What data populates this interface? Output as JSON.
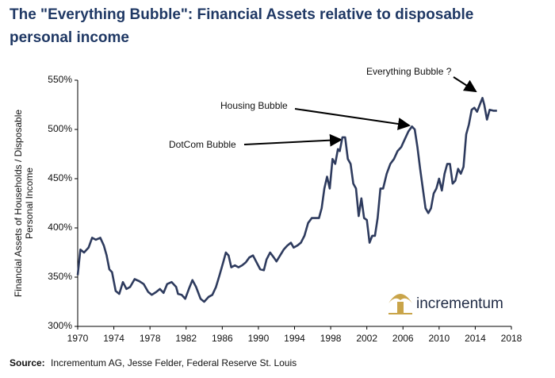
{
  "chart_data": {
    "type": "line",
    "title": "The \"Everything Bubble\": Financial Assets relative to disposable personal income",
    "ylabel": "Financial Assets of Households / Disposable Personal Income",
    "source_label": "Source:",
    "source_text": "Incrementum AG, Jesse Felder, Federal Reserve St. Louis",
    "logo_text": "incrementum",
    "annotations": [
      "Everything Bubble ?",
      "Housing Bubble",
      "DotCom Bubble"
    ],
    "color": "#2e3b5e",
    "xlim": [
      1970,
      2018
    ],
    "xticks": [
      1970,
      1974,
      1978,
      1982,
      1986,
      1990,
      1994,
      1998,
      2002,
      2006,
      2010,
      2014,
      2018
    ],
    "ylim": [
      300,
      550
    ],
    "yticks": [
      {
        "value": 300,
        "label": "300%"
      },
      {
        "value": 350,
        "label": "350%"
      },
      {
        "value": 400,
        "label": "400%"
      },
      {
        "value": 450,
        "label": "450%"
      },
      {
        "value": 500,
        "label": "500%"
      },
      {
        "value": 550,
        "label": "550%"
      }
    ],
    "x": [
      1970.0,
      1970.3,
      1970.7,
      1971.2,
      1971.6,
      1972.0,
      1972.5,
      1972.9,
      1973.2,
      1973.5,
      1973.8,
      1974.2,
      1974.6,
      1975.0,
      1975.4,
      1975.8,
      1976.3,
      1976.8,
      1977.3,
      1977.8,
      1978.2,
      1978.7,
      1979.1,
      1979.5,
      1979.9,
      1980.4,
      1980.9,
      1981.1,
      1981.5,
      1981.9,
      1982.3,
      1982.7,
      1983.1,
      1983.6,
      1984.0,
      1984.5,
      1984.9,
      1985.3,
      1985.7,
      1986.1,
      1986.4,
      1986.7,
      1987.0,
      1987.4,
      1987.8,
      1988.2,
      1988.6,
      1989.0,
      1989.4,
      1989.8,
      1990.2,
      1990.6,
      1990.9,
      1991.3,
      1991.7,
      1992.0,
      1992.4,
      1992.8,
      1993.2,
      1993.6,
      1993.9,
      1994.3,
      1994.7,
      1995.1,
      1995.5,
      1995.9,
      1996.3,
      1996.7,
      1997.0,
      1997.3,
      1997.6,
      1997.9,
      1998.2,
      1998.5,
      1998.8,
      1999.0,
      1999.3,
      1999.6,
      1999.9,
      2000.2,
      2000.5,
      2000.8,
      2001.1,
      2001.4,
      2001.7,
      2002.0,
      2002.3,
      2002.6,
      2002.9,
      2003.2,
      2003.5,
      2003.8,
      2004.2,
      2004.6,
      2005.0,
      2005.4,
      2005.8,
      2006.2,
      2006.6,
      2007.0,
      2007.3,
      2007.6,
      2007.9,
      2008.2,
      2008.5,
      2008.8,
      2009.1,
      2009.4,
      2009.7,
      2010.0,
      2010.3,
      2010.6,
      2010.9,
      2011.2,
      2011.5,
      2011.8,
      2012.1,
      2012.4,
      2012.7,
      2013.0,
      2013.3,
      2013.6,
      2013.9,
      2014.2,
      2014.5,
      2014.8,
      2015.0,
      2015.3,
      2015.6,
      2016.0,
      2016.4
    ],
    "values": [
      352,
      378,
      375,
      380,
      390,
      388,
      390,
      382,
      372,
      358,
      355,
      336,
      333,
      345,
      338,
      340,
      348,
      346,
      343,
      335,
      332,
      335,
      338,
      334,
      343,
      345,
      340,
      333,
      332,
      328,
      338,
      347,
      340,
      328,
      325,
      330,
      332,
      340,
      352,
      365,
      375,
      372,
      360,
      362,
      360,
      362,
      365,
      370,
      372,
      365,
      358,
      357,
      368,
      375,
      370,
      366,
      372,
      378,
      382,
      385,
      380,
      382,
      385,
      392,
      405,
      410,
      410,
      410,
      420,
      440,
      452,
      440,
      470,
      465,
      480,
      478,
      492,
      492,
      470,
      465,
      445,
      440,
      412,
      430,
      410,
      408,
      385,
      392,
      392,
      410,
      440,
      440,
      455,
      465,
      470,
      478,
      482,
      490,
      498,
      503,
      500,
      482,
      460,
      440,
      420,
      415,
      420,
      435,
      440,
      450,
      438,
      455,
      465,
      465,
      445,
      448,
      460,
      455,
      462,
      495,
      505,
      520,
      522,
      518,
      525,
      532,
      525,
      510,
      520,
      519,
      519
    ]
  }
}
